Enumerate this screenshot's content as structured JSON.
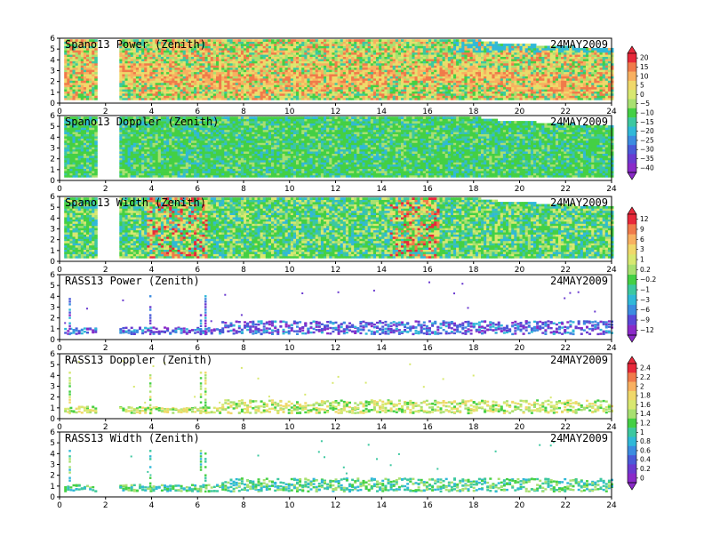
{
  "chart_data": [
    {
      "type": "heatmap",
      "title": "Spano13  Power  (Zenith)",
      "date": "24MAY2009",
      "xlim": [
        0,
        24
      ],
      "ylim": [
        0,
        6
      ],
      "x_ticks": [
        0,
        2,
        4,
        6,
        8,
        10,
        12,
        14,
        16,
        18,
        20,
        22,
        24
      ],
      "y_ticks": [
        0,
        1,
        2,
        3,
        4,
        5,
        6
      ],
      "colorbar": "power",
      "fill": "dense",
      "palette": "hot",
      "gaps": [
        [
          1.55,
          2.55
        ]
      ]
    },
    {
      "type": "heatmap",
      "title": "Spano13  Doppler  (Zenith)",
      "date": "24MAY2009",
      "xlim": [
        0,
        24
      ],
      "ylim": [
        0,
        6
      ],
      "x_ticks": [
        0,
        2,
        4,
        6,
        8,
        10,
        12,
        14,
        16,
        18,
        20,
        22,
        24
      ],
      "y_ticks": [
        0,
        1,
        2,
        3,
        4,
        5,
        6
      ],
      "colorbar": "power",
      "fill": "dense",
      "palette": "green",
      "gaps": [
        [
          1.55,
          2.55
        ]
      ]
    },
    {
      "type": "heatmap",
      "title": "Spano13  Width  (Zenith)",
      "date": "24MAY2009",
      "xlim": [
        0,
        24
      ],
      "ylim": [
        0,
        6
      ],
      "x_ticks": [
        0,
        2,
        4,
        6,
        8,
        10,
        12,
        14,
        16,
        18,
        20,
        22,
        24
      ],
      "y_ticks": [
        0,
        1,
        2,
        3,
        4,
        5,
        6
      ],
      "colorbar": "width",
      "fill": "dense",
      "palette": "mixed",
      "gaps": [
        [
          1.55,
          2.55
        ]
      ]
    },
    {
      "type": "heatmap",
      "title": "RASS13  Power  (Zenith)",
      "date": "24MAY2009",
      "xlim": [
        0,
        24
      ],
      "ylim": [
        0,
        6
      ],
      "x_ticks": [
        0,
        2,
        4,
        6,
        8,
        10,
        12,
        14,
        16,
        18,
        20,
        22,
        24
      ],
      "y_ticks": [
        0,
        1,
        2,
        3,
        4,
        5,
        6
      ],
      "colorbar": "width",
      "fill": "sparse",
      "palette": "purple",
      "gaps": [
        [
          1.55,
          2.55
        ]
      ]
    },
    {
      "type": "heatmap",
      "title": "RASS13  Doppler  (Zenith)",
      "date": "24MAY2009",
      "xlim": [
        0,
        24
      ],
      "ylim": [
        0,
        6
      ],
      "x_ticks": [
        0,
        2,
        4,
        6,
        8,
        10,
        12,
        14,
        16,
        18,
        20,
        22,
        24
      ],
      "y_ticks": [
        0,
        1,
        2,
        3,
        4,
        5,
        6
      ],
      "colorbar": "doppler",
      "fill": "sparse",
      "palette": "yellowgreen",
      "gaps": [
        [
          1.55,
          2.55
        ]
      ]
    },
    {
      "type": "heatmap",
      "title": "RASS13  Width  (Zenith)",
      "date": "24MAY2009",
      "xlim": [
        0,
        24
      ],
      "ylim": [
        0,
        6
      ],
      "x_ticks": [
        0,
        2,
        4,
        6,
        8,
        10,
        12,
        14,
        16,
        18,
        20,
        22,
        24
      ],
      "y_ticks": [
        0,
        1,
        2,
        3,
        4,
        5,
        6
      ],
      "colorbar": "doppler",
      "fill": "sparse",
      "palette": "cyangreen",
      "gaps": [
        [
          1.55,
          2.55
        ]
      ]
    }
  ],
  "colorbars": {
    "power": {
      "labels": [
        "20",
        "15",
        "10",
        "5",
        "0",
        "−5",
        "−10",
        "−15",
        "−20",
        "−25",
        "−30",
        "−35",
        "−40"
      ],
      "colors": [
        "#e8283a",
        "#f07a4a",
        "#f8b060",
        "#f0d86a",
        "#d8e870",
        "#a8e070",
        "#44d044",
        "#3cc8a0",
        "#30b8d8",
        "#3c8ce0",
        "#4a5ad8",
        "#6a3ad0",
        "#8a2ac8"
      ]
    },
    "width": {
      "labels": [
        "12",
        "9",
        "6",
        "3",
        "1",
        "0.2",
        "−0.2",
        "−1",
        "−3",
        "−6",
        "−9",
        "−12"
      ],
      "colors": [
        "#e8283a",
        "#f07a4a",
        "#f8b060",
        "#f0d86a",
        "#d8e870",
        "#a8e070",
        "#44d044",
        "#3cc8a0",
        "#30b8d8",
        "#3c8ce0",
        "#5a48d8",
        "#8a2ac8"
      ]
    },
    "doppler": {
      "labels": [
        "2.4",
        "2.2",
        "2",
        "1.8",
        "1.6",
        "1.4",
        "1.2",
        "1",
        "0.8",
        "0.6",
        "0.4",
        "0.2",
        "0"
      ],
      "colors": [
        "#e8283a",
        "#f07a4a",
        "#f8b060",
        "#f0d86a",
        "#d8e870",
        "#a8e070",
        "#44d044",
        "#3cc8a0",
        "#30b8d8",
        "#3c8ce0",
        "#4a5ad8",
        "#6a3ad0",
        "#8a2ac8"
      ]
    }
  }
}
